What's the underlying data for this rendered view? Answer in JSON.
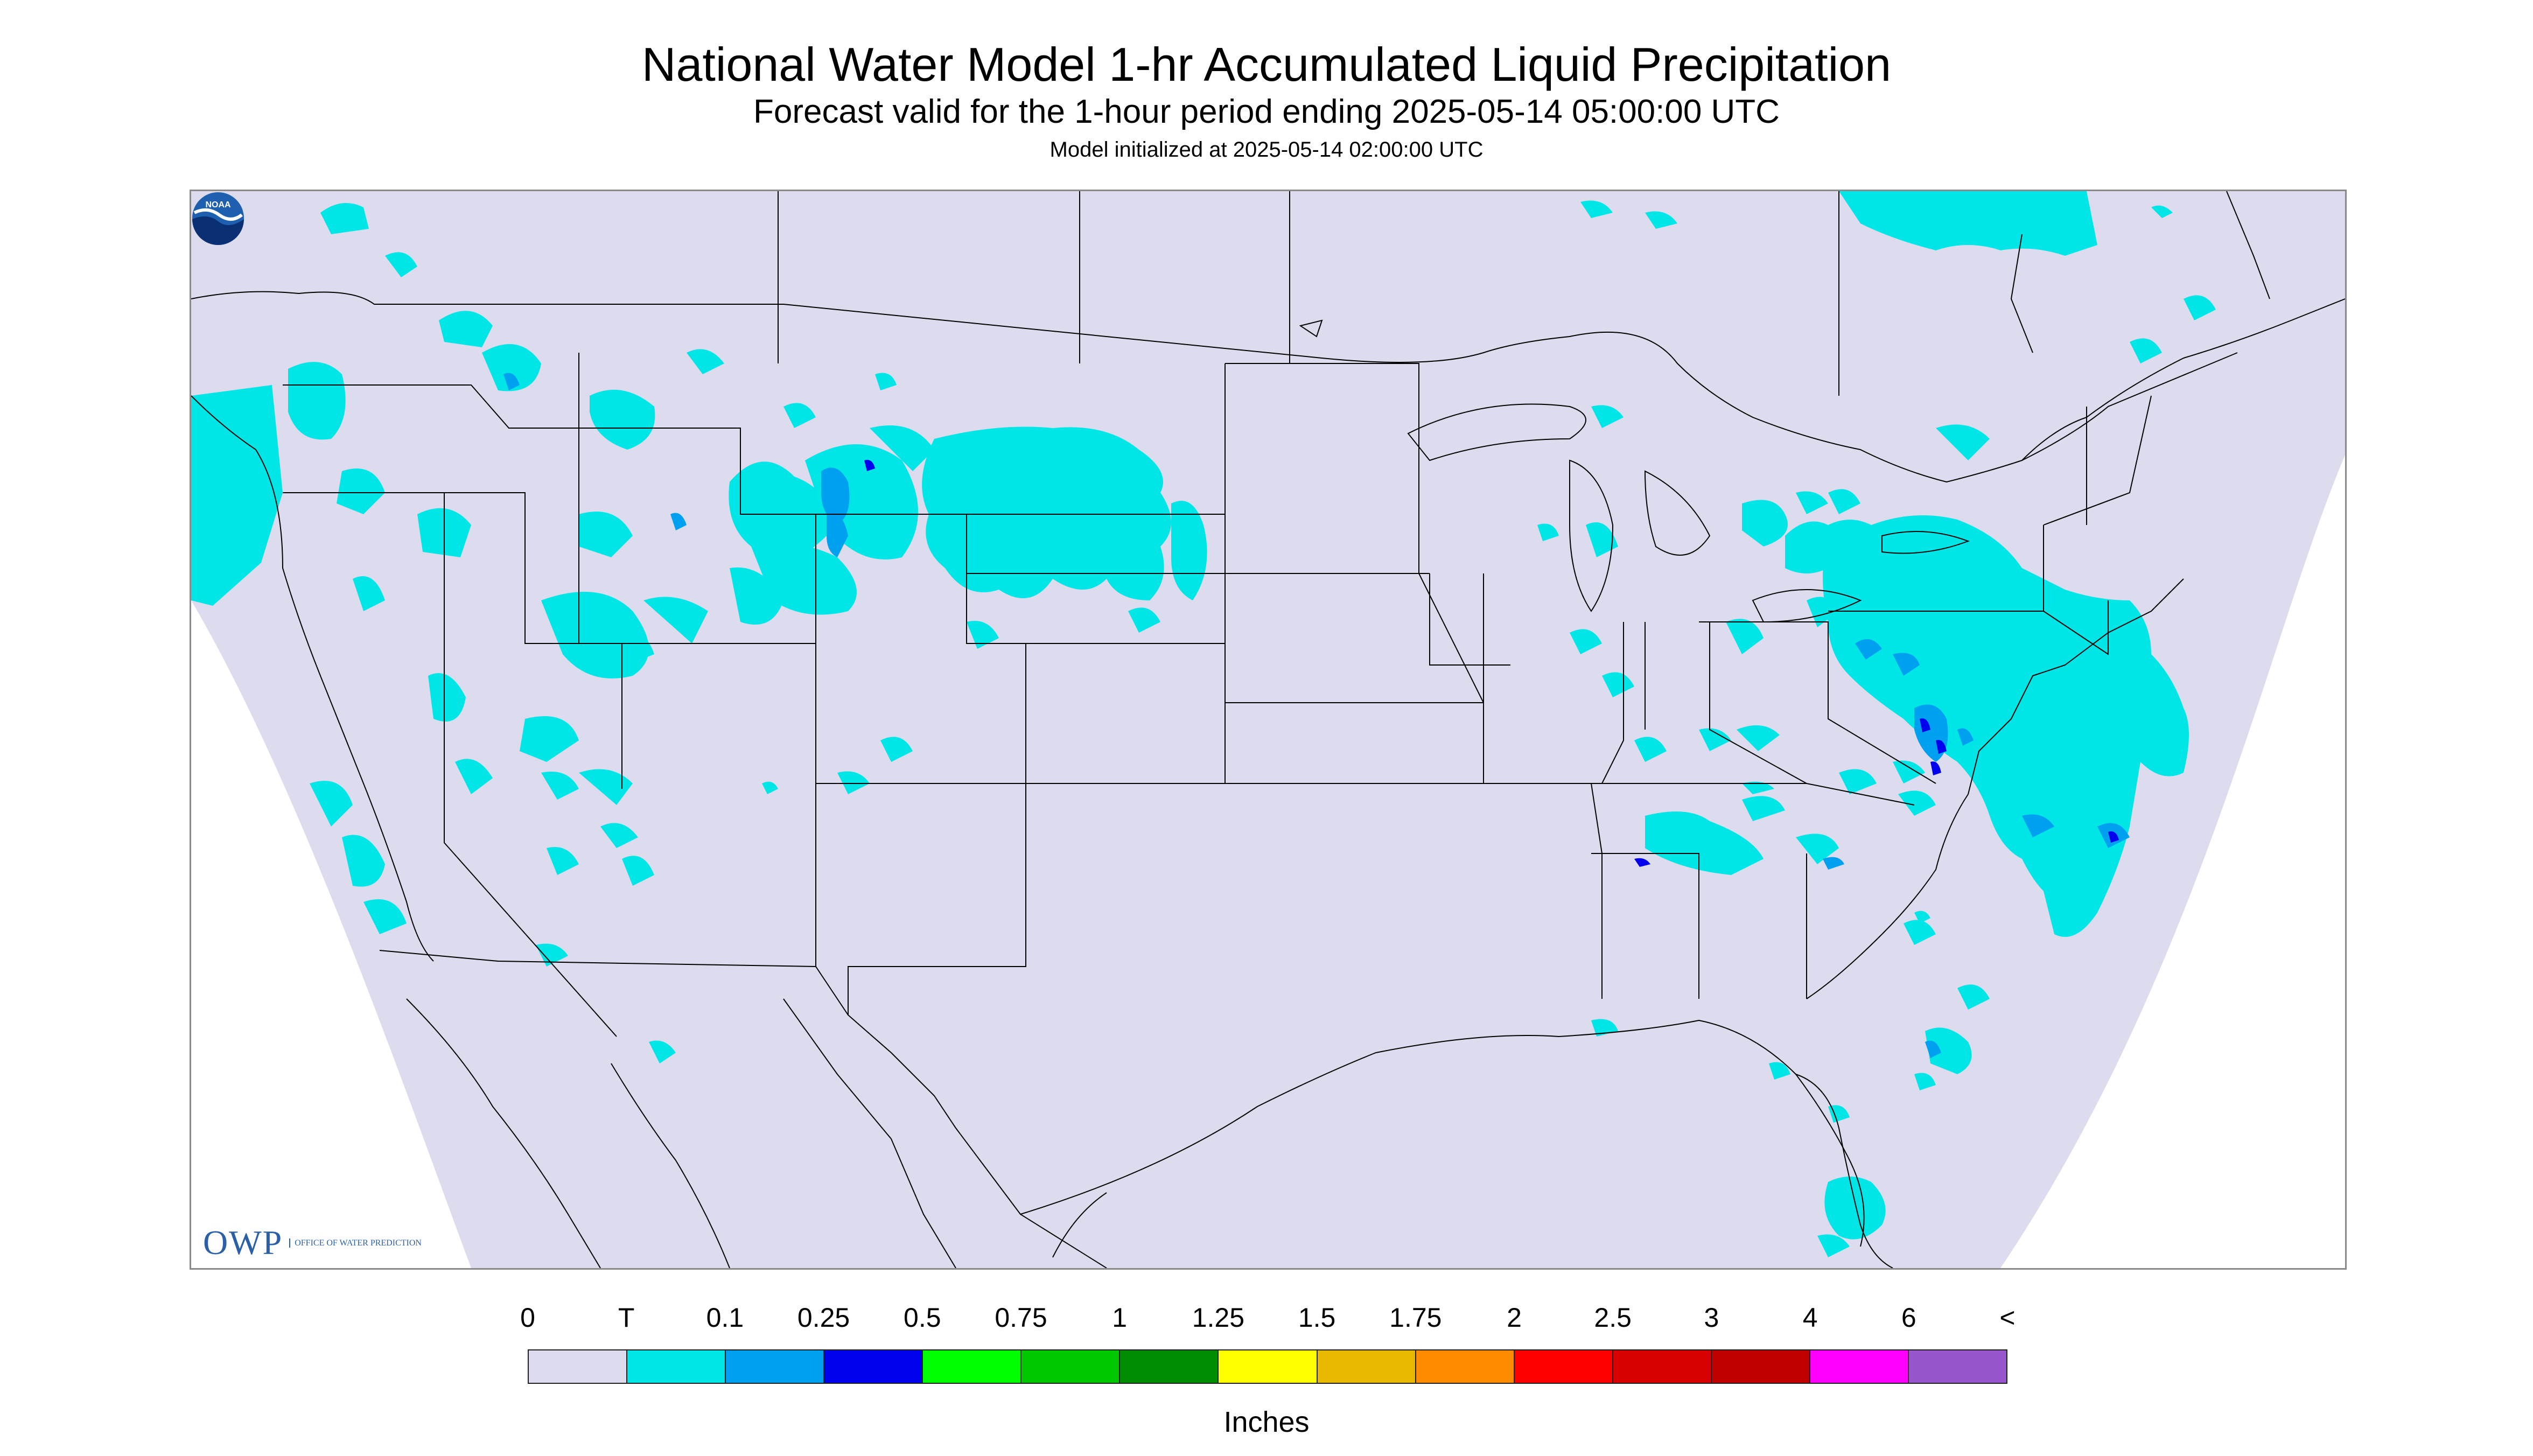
{
  "header": {
    "title": "National Water Model 1-hr Accumulated Liquid Precipitation",
    "subtitle": "Forecast valid for the 1-hour period ending 2025-05-14 05:00:00 UTC",
    "init": "Model initialized at 2025-05-14 02:00:00 UTC"
  },
  "logos": {
    "owp_main": "OWP",
    "owp_sub": "OFFICE OF WATER PREDICTION",
    "noaa": "NOAA"
  },
  "legend": {
    "labels": [
      "0",
      "T",
      "0.1",
      "0.25",
      "0.5",
      "0.75",
      "1",
      "1.25",
      "1.5",
      "1.75",
      "2",
      "2.5",
      "3",
      "4",
      "6",
      "<"
    ],
    "colors": [
      "#dcdcee",
      "#00e6e6",
      "#00a0f0",
      "#0000ee",
      "#00ff00",
      "#00c800",
      "#008c00",
      "#ffff00",
      "#e6b800",
      "#ff8c00",
      "#ff0000",
      "#d80000",
      "#c00000",
      "#ff00ff",
      "#9955cc"
    ],
    "units": "Inches"
  },
  "map": {
    "domain_color": "#dcdcee",
    "outside_color": "#ffffff",
    "boundary_color": "#000000",
    "precip_colors": {
      "trace": "#00e6e6",
      "light": "#00a0f0",
      "moderate": "#0000ee"
    }
  }
}
